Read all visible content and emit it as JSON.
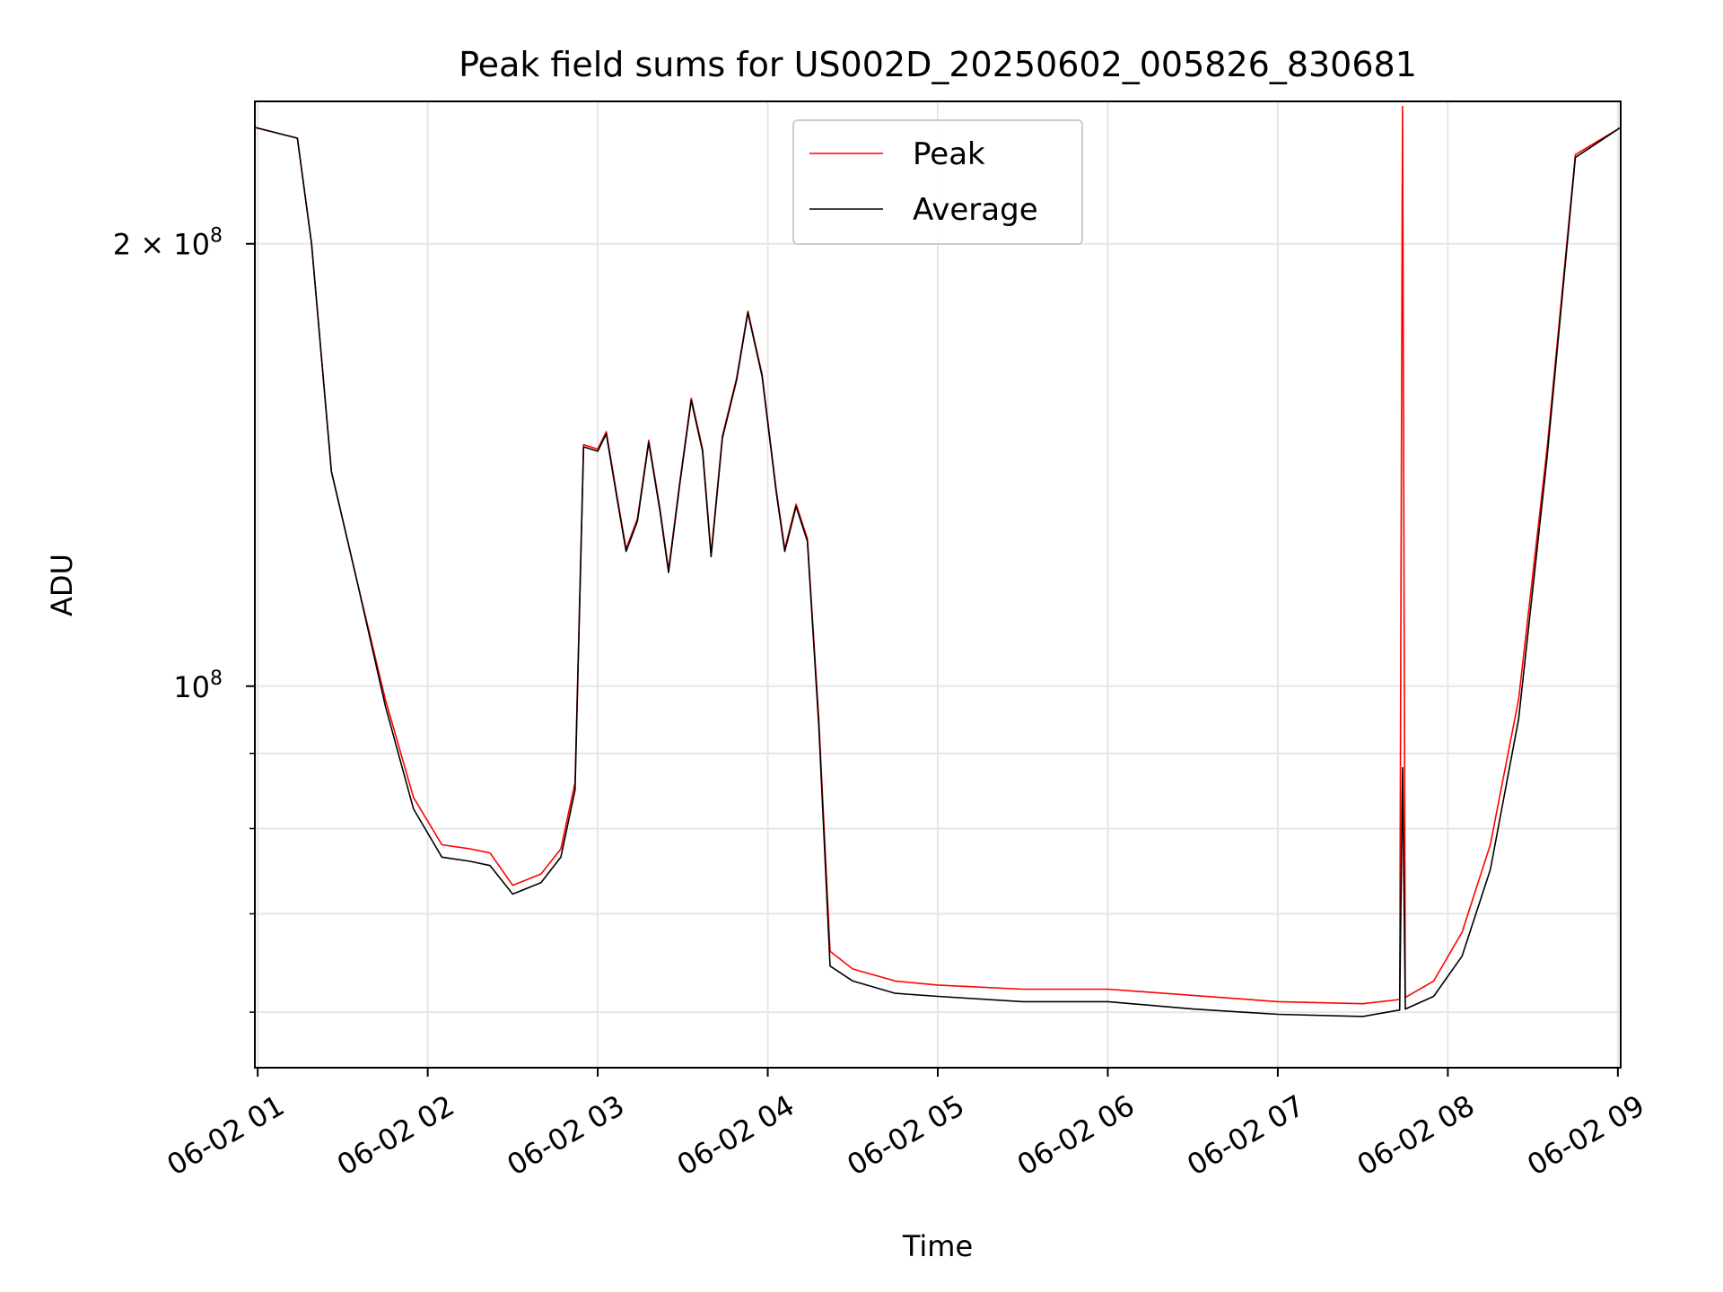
{
  "chart_data": {
    "type": "line",
    "title": "Peak field sums for US002D_20250602_005826_830681",
    "xlabel": "Time",
    "ylabel": "ADU",
    "x_scale": "time",
    "y_scale": "log",
    "xlim": [
      "2025-06-02 00:59",
      "2025-06-02 09:01"
    ],
    "ylim": [
      55000000,
      250000000
    ],
    "grid": true,
    "legend_position": "top-center",
    "x_ticks": [
      {
        "value": "2025-06-02 01:00",
        "label": "06-02 01"
      },
      {
        "value": "2025-06-02 02:00",
        "label": "06-02 02"
      },
      {
        "value": "2025-06-02 03:00",
        "label": "06-02 03"
      },
      {
        "value": "2025-06-02 04:00",
        "label": "06-02 04"
      },
      {
        "value": "2025-06-02 05:00",
        "label": "06-02 05"
      },
      {
        "value": "2025-06-02 06:00",
        "label": "06-02 06"
      },
      {
        "value": "2025-06-02 07:00",
        "label": "06-02 07"
      },
      {
        "value": "2025-06-02 08:00",
        "label": "06-02 08"
      },
      {
        "value": "2025-06-02 09:00",
        "label": "06-02 09"
      }
    ],
    "y_major_ticks": [
      {
        "value": 100000000,
        "base": "10",
        "exp": "8",
        "coef": ""
      },
      {
        "value": 200000000,
        "base": "10",
        "exp": "8",
        "coef": "2 × "
      }
    ],
    "y_minor_ticks": [
      60000000,
      70000000,
      80000000,
      90000000
    ],
    "series": [
      {
        "name": "Peak",
        "color": "#ff0000",
        "points": [
          [
            "2025-06-02 00:59",
            240000000
          ],
          [
            "2025-06-02 01:14",
            236000000
          ],
          [
            "2025-06-02 01:19",
            200000000
          ],
          [
            "2025-06-02 01:26",
            140000000
          ],
          [
            "2025-06-02 01:35",
            118000000
          ],
          [
            "2025-06-02 01:45",
            98000000
          ],
          [
            "2025-06-02 01:55",
            84000000
          ],
          [
            "2025-06-02 02:05",
            78000000
          ],
          [
            "2025-06-02 02:15",
            77500000
          ],
          [
            "2025-06-02 02:22",
            77000000
          ],
          [
            "2025-06-02 02:30",
            73200000
          ],
          [
            "2025-06-02 02:40",
            74500000
          ],
          [
            "2025-06-02 02:47",
            77500000
          ],
          [
            "2025-06-02 02:52",
            86000000
          ],
          [
            "2025-06-02 02:55",
            146000000
          ],
          [
            "2025-06-02 03:00",
            145000000
          ],
          [
            "2025-06-02 03:03",
            149000000
          ],
          [
            "2025-06-02 03:07",
            134000000
          ],
          [
            "2025-06-02 03:10",
            124000000
          ],
          [
            "2025-06-02 03:14",
            130000000
          ],
          [
            "2025-06-02 03:18",
            147000000
          ],
          [
            "2025-06-02 03:22",
            132000000
          ],
          [
            "2025-06-02 03:25",
            120000000
          ],
          [
            "2025-06-02 03:29",
            138000000
          ],
          [
            "2025-06-02 03:33",
            157000000
          ],
          [
            "2025-06-02 03:37",
            145000000
          ],
          [
            "2025-06-02 03:40",
            123000000
          ],
          [
            "2025-06-02 03:44",
            148000000
          ],
          [
            "2025-06-02 03:49",
            162000000
          ],
          [
            "2025-06-02 03:53",
            180000000
          ],
          [
            "2025-06-02 03:58",
            163000000
          ],
          [
            "2025-06-02 04:03",
            136000000
          ],
          [
            "2025-06-02 04:06",
            124000000
          ],
          [
            "2025-06-02 04:10",
            133000000
          ],
          [
            "2025-06-02 04:14",
            126000000
          ],
          [
            "2025-06-02 04:18",
            95000000
          ],
          [
            "2025-06-02 04:22",
            66000000
          ],
          [
            "2025-06-02 04:30",
            64200000
          ],
          [
            "2025-06-02 04:45",
            63000000
          ],
          [
            "2025-06-02 05:00",
            62600000
          ],
          [
            "2025-06-02 05:30",
            62200000
          ],
          [
            "2025-06-02 06:00",
            62200000
          ],
          [
            "2025-06-02 06:30",
            61600000
          ],
          [
            "2025-06-02 07:00",
            61000000
          ],
          [
            "2025-06-02 07:30",
            60800000
          ],
          [
            "2025-06-02 07:43",
            61200000
          ],
          [
            "2025-06-02 07:44",
            248000000
          ],
          [
            "2025-06-02 07:45",
            61400000
          ],
          [
            "2025-06-02 07:55",
            63000000
          ],
          [
            "2025-06-02 08:05",
            68000000
          ],
          [
            "2025-06-02 08:15",
            78000000
          ],
          [
            "2025-06-02 08:25",
            98000000
          ],
          [
            "2025-06-02 08:35",
            145000000
          ],
          [
            "2025-06-02 08:45",
            230000000
          ],
          [
            "2025-06-02 09:01",
            240000000
          ]
        ]
      },
      {
        "name": "Average",
        "color": "#000000",
        "points": [
          [
            "2025-06-02 00:59",
            240000000
          ],
          [
            "2025-06-02 01:14",
            236000000
          ],
          [
            "2025-06-02 01:19",
            200000000
          ],
          [
            "2025-06-02 01:26",
            140000000
          ],
          [
            "2025-06-02 01:35",
            118000000
          ],
          [
            "2025-06-02 01:45",
            97000000
          ],
          [
            "2025-06-02 01:55",
            82500000
          ],
          [
            "2025-06-02 02:05",
            76500000
          ],
          [
            "2025-06-02 02:15",
            76000000
          ],
          [
            "2025-06-02 02:22",
            75500000
          ],
          [
            "2025-06-02 02:30",
            72200000
          ],
          [
            "2025-06-02 02:40",
            73500000
          ],
          [
            "2025-06-02 02:47",
            76500000
          ],
          [
            "2025-06-02 02:52",
            85000000
          ],
          [
            "2025-06-02 02:55",
            145500000
          ],
          [
            "2025-06-02 03:00",
            144500000
          ],
          [
            "2025-06-02 03:03",
            148500000
          ],
          [
            "2025-06-02 03:07",
            133500000
          ],
          [
            "2025-06-02 03:10",
            123500000
          ],
          [
            "2025-06-02 03:14",
            129500000
          ],
          [
            "2025-06-02 03:18",
            146500000
          ],
          [
            "2025-06-02 03:22",
            131500000
          ],
          [
            "2025-06-02 03:25",
            119500000
          ],
          [
            "2025-06-02 03:29",
            137500000
          ],
          [
            "2025-06-02 03:33",
            156500000
          ],
          [
            "2025-06-02 03:37",
            144500000
          ],
          [
            "2025-06-02 03:40",
            122500000
          ],
          [
            "2025-06-02 03:44",
            147500000
          ],
          [
            "2025-06-02 03:49",
            161500000
          ],
          [
            "2025-06-02 03:53",
            179500000
          ],
          [
            "2025-06-02 03:58",
            162500000
          ],
          [
            "2025-06-02 04:03",
            135500000
          ],
          [
            "2025-06-02 04:06",
            123500000
          ],
          [
            "2025-06-02 04:10",
            132500000
          ],
          [
            "2025-06-02 04:14",
            125500000
          ],
          [
            "2025-06-02 04:18",
            94000000
          ],
          [
            "2025-06-02 04:22",
            64500000
          ],
          [
            "2025-06-02 04:30",
            63000000
          ],
          [
            "2025-06-02 04:45",
            61800000
          ],
          [
            "2025-06-02 05:00",
            61500000
          ],
          [
            "2025-06-02 05:30",
            61000000
          ],
          [
            "2025-06-02 06:00",
            61000000
          ],
          [
            "2025-06-02 06:30",
            60300000
          ],
          [
            "2025-06-02 07:00",
            59800000
          ],
          [
            "2025-06-02 07:30",
            59600000
          ],
          [
            "2025-06-02 07:43",
            60200000
          ],
          [
            "2025-06-02 07:44",
            88000000
          ],
          [
            "2025-06-02 07:45",
            60300000
          ],
          [
            "2025-06-02 07:55",
            61500000
          ],
          [
            "2025-06-02 08:05",
            65500000
          ],
          [
            "2025-06-02 08:15",
            75000000
          ],
          [
            "2025-06-02 08:25",
            95000000
          ],
          [
            "2025-06-02 08:35",
            143000000
          ],
          [
            "2025-06-02 08:45",
            229000000
          ],
          [
            "2025-06-02 09:01",
            240000000
          ]
        ]
      }
    ]
  }
}
